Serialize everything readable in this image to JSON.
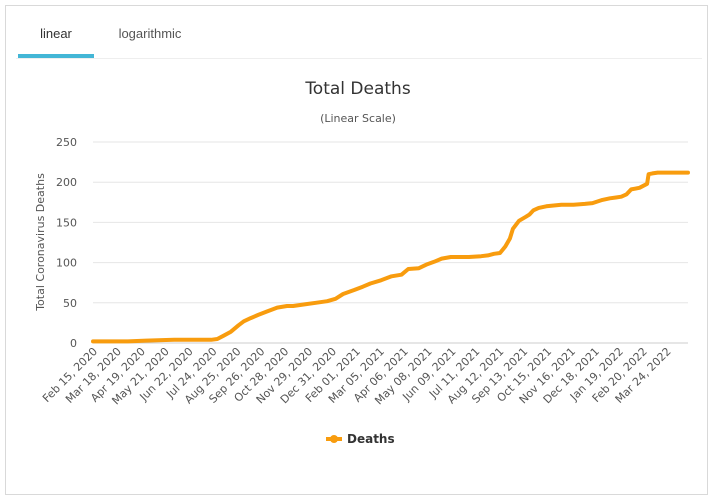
{
  "tabs": [
    {
      "label": "linear",
      "active": true
    },
    {
      "label": "logarithmic",
      "active": false
    }
  ],
  "colors": {
    "series": "#f89c0e",
    "tab_indicator": "#43b6d6",
    "grid": "#e6e6e6"
  },
  "chart_data": {
    "type": "line",
    "title": "Total Deaths",
    "subtitle": "(Linear Scale)",
    "ylabel": "Total Coronavirus Deaths",
    "xlabel": "",
    "ylim": [
      0,
      250
    ],
    "yticks": [
      0,
      50,
      100,
      150,
      200,
      250
    ],
    "grid": true,
    "legend_position": "bottom-center",
    "x_tick_labels": [
      "Feb 15, 2020",
      "Mar 18, 2020",
      "Apr 19, 2020",
      "May 21, 2020",
      "Jun 22, 2020",
      "Jul 24, 2020",
      "Aug 25, 2020",
      "Sep 26, 2020",
      "Oct 28, 2020",
      "Nov 29, 2020",
      "Dec 31, 2020",
      "Feb 01, 2021",
      "Mar 05, 2021",
      "Apr 06, 2021",
      "May 08, 2021",
      "Jun 09, 2021",
      "Jul 11, 2021",
      "Aug 12, 2021",
      "Sep 13, 2021",
      "Oct 15, 2021",
      "Nov 16, 2021",
      "Dec 18, 2021",
      "Jan 19, 2022",
      "Feb 20, 2022",
      "Mar 24, 2022"
    ],
    "series": [
      {
        "name": "Deaths",
        "x": [
          "2020-02-15",
          "2020-04-01",
          "2020-04-25",
          "2020-06-01",
          "2020-07-20",
          "2020-07-28",
          "2020-08-05",
          "2020-08-15",
          "2020-08-25",
          "2020-09-01",
          "2020-09-10",
          "2020-09-20",
          "2020-10-01",
          "2020-10-15",
          "2020-10-28",
          "2020-11-05",
          "2020-11-20",
          "2020-12-05",
          "2020-12-20",
          "2020-12-31",
          "2021-01-10",
          "2021-01-25",
          "2021-02-05",
          "2021-02-15",
          "2021-03-01",
          "2021-03-15",
          "2021-03-28",
          "2021-04-06",
          "2021-04-20",
          "2021-05-01",
          "2021-05-10",
          "2021-05-20",
          "2021-06-01",
          "2021-06-09",
          "2021-06-25",
          "2021-07-11",
          "2021-07-20",
          "2021-07-28",
          "2021-08-05",
          "2021-08-12",
          "2021-08-18",
          "2021-08-22",
          "2021-08-30",
          "2021-09-08",
          "2021-09-13",
          "2021-09-18",
          "2021-09-25",
          "2021-10-05",
          "2021-10-15",
          "2021-10-25",
          "2021-11-10",
          "2021-11-25",
          "2021-12-05",
          "2021-12-18",
          "2021-12-28",
          "2022-01-05",
          "2022-01-12",
          "2022-01-19",
          "2022-01-25",
          "2022-02-05",
          "2022-02-15",
          "2022-02-17",
          "2022-02-22",
          "2022-03-01",
          "2022-03-10",
          "2022-03-24",
          "2022-04-10"
        ],
        "values": [
          2,
          2,
          3,
          4,
          4,
          5,
          9,
          14,
          22,
          27,
          31,
          35,
          39,
          44,
          46,
          46,
          48,
          50,
          52,
          55,
          61,
          66,
          70,
          74,
          78,
          83,
          85,
          92,
          93,
          98,
          101,
          105,
          107,
          107,
          107,
          108,
          109,
          111,
          112,
          120,
          130,
          142,
          152,
          157,
          160,
          165,
          168,
          170,
          171,
          172,
          172,
          173,
          174,
          178,
          180,
          181,
          182,
          185,
          191,
          193,
          198,
          210,
          211,
          212,
          212,
          212,
          212
        ]
      }
    ]
  }
}
